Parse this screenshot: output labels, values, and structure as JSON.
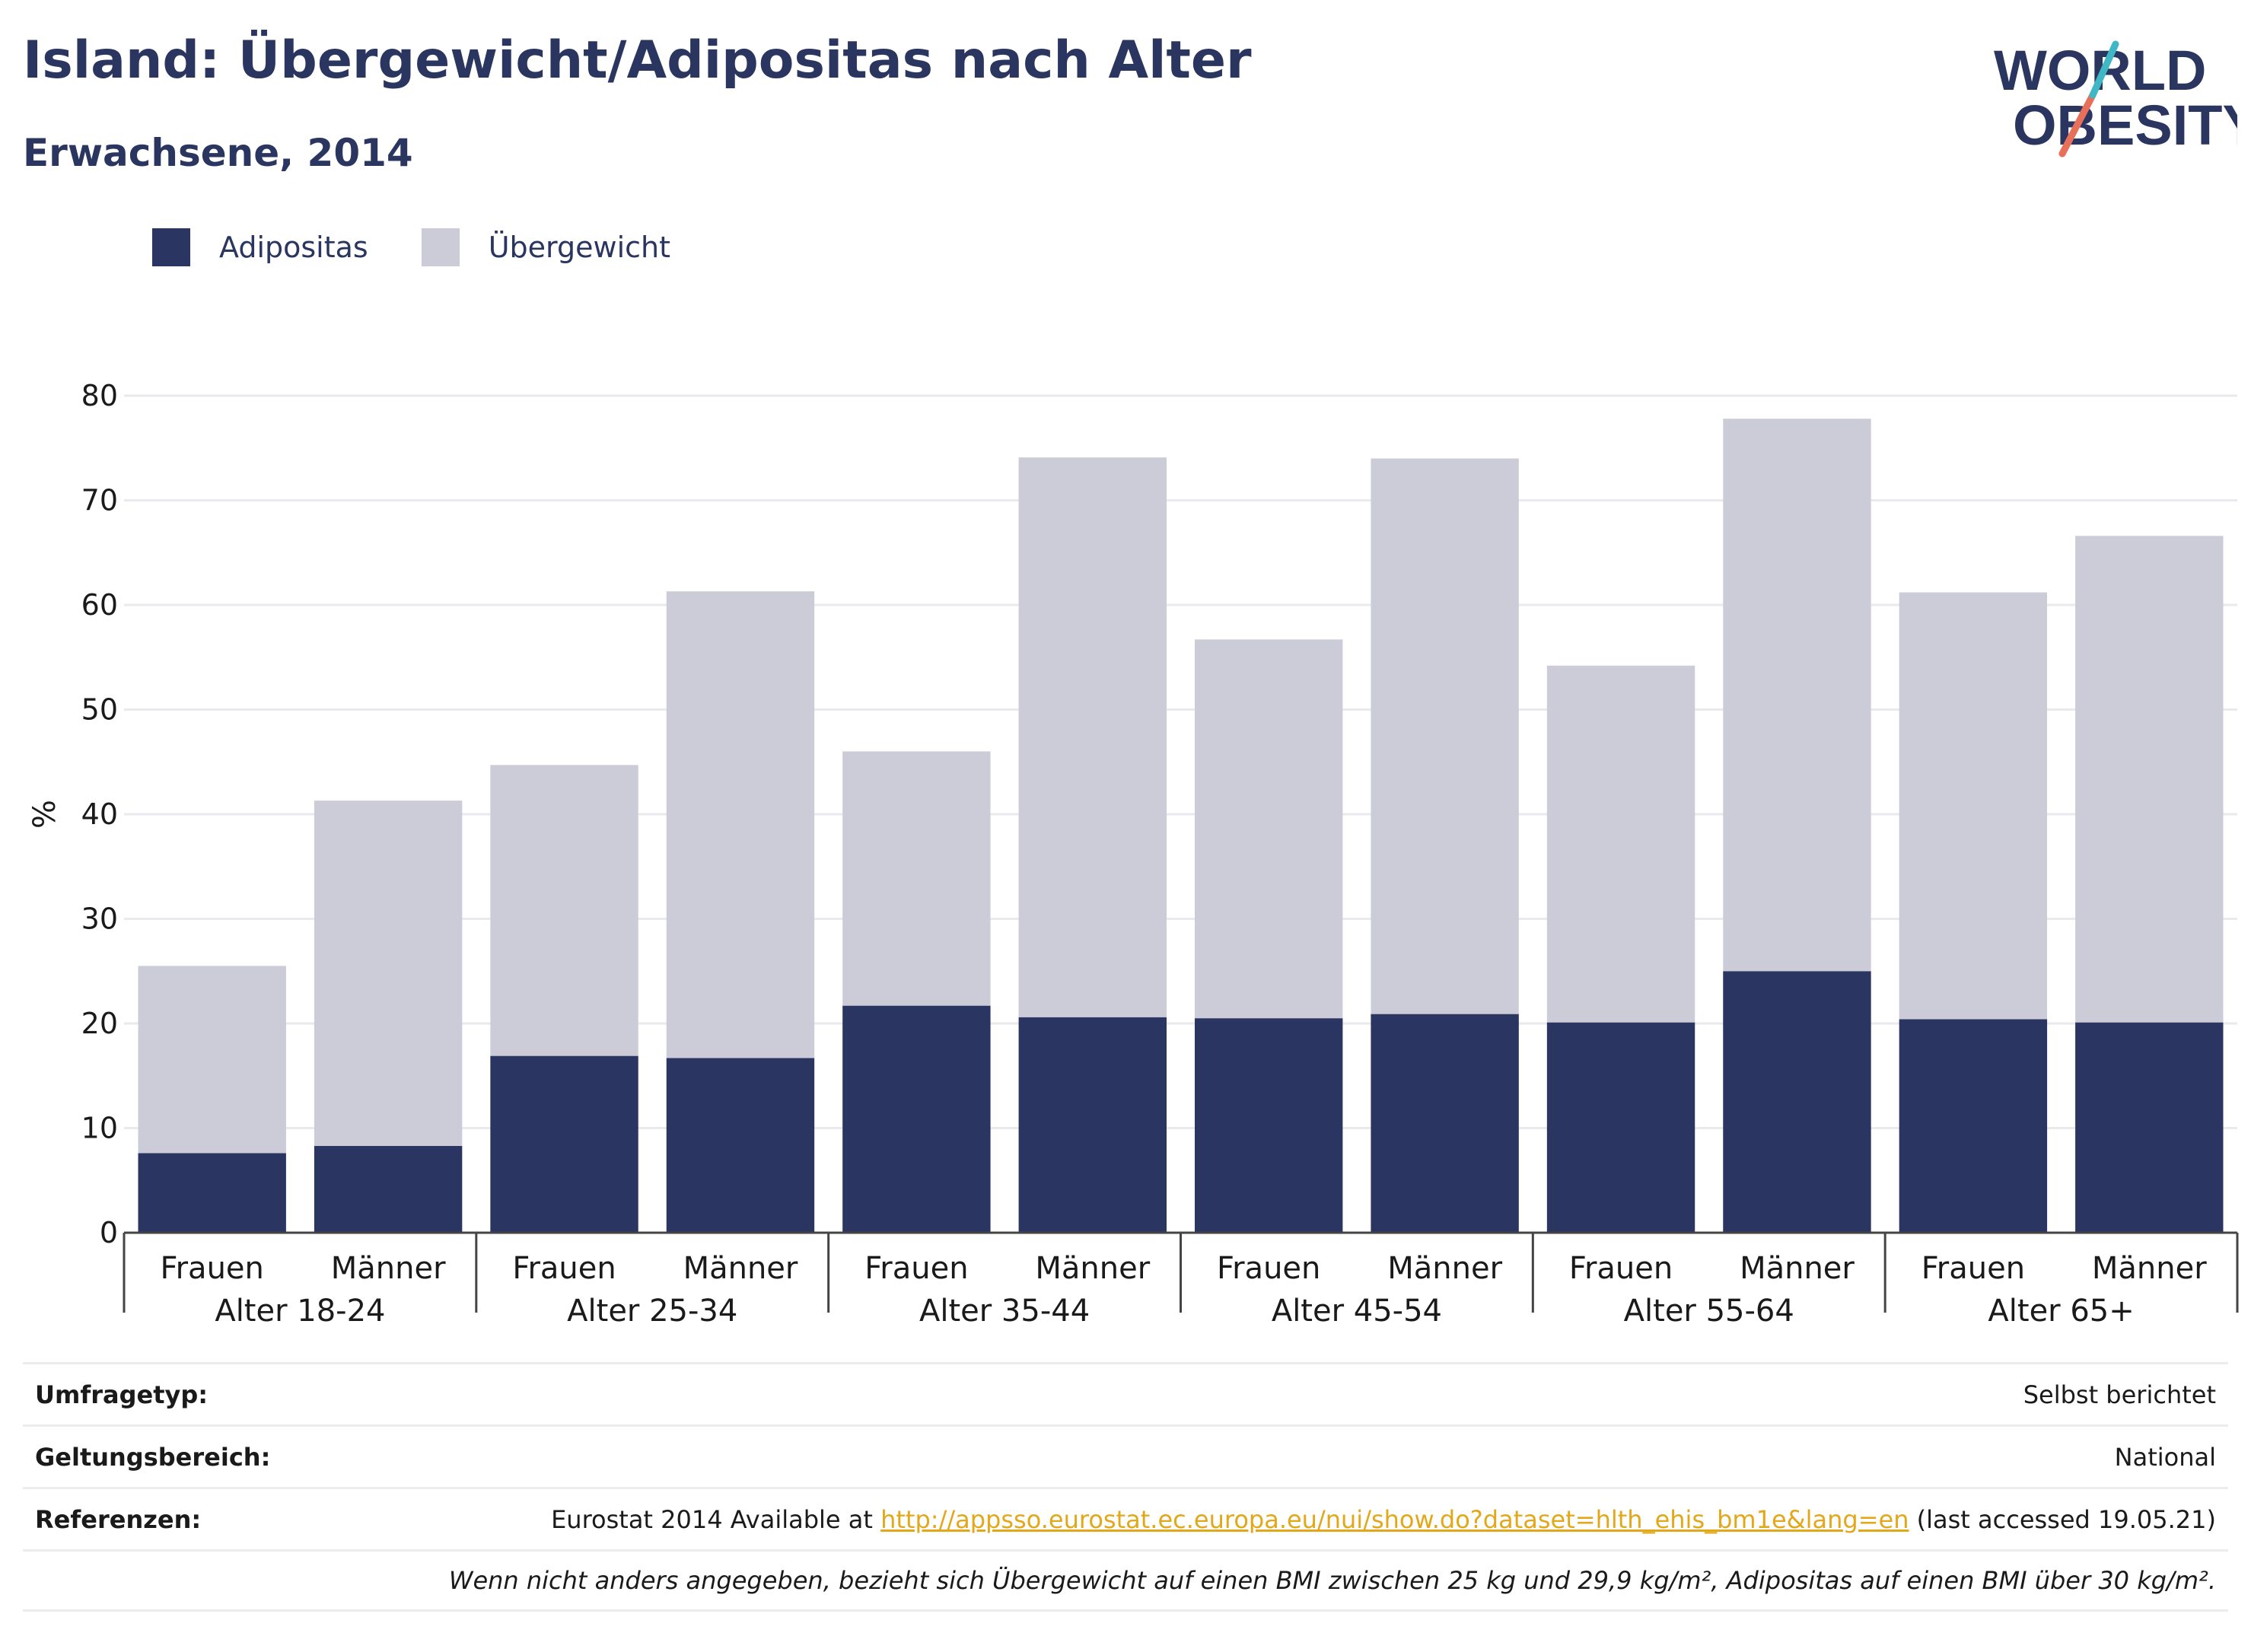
{
  "title": "Island: Übergewicht/Adipositas nach Alter",
  "subtitle": "Erwachsene, 2014",
  "logo": {
    "line1": "WORLD",
    "line2": "OBESITY"
  },
  "legend": [
    {
      "label": "Adipositas",
      "color": "#2a3562"
    },
    {
      "label": "Übergewicht",
      "color": "#cbccd8"
    }
  ],
  "chart_data": {
    "type": "bar",
    "stacked": true,
    "ylabel": "%",
    "ylim": [
      0,
      80
    ],
    "yticks": [
      0,
      10,
      20,
      30,
      40,
      50,
      60,
      70,
      80
    ],
    "grid": true,
    "legend_position": "top-left",
    "groups": [
      "Alter 18-24",
      "Alter 25-34",
      "Alter 35-44",
      "Alter 45-54",
      "Alter 55-64",
      "Alter 65+"
    ],
    "subcategories": [
      "Frauen",
      "Männer"
    ],
    "series": [
      {
        "name": "Adipositas",
        "color": "#2a3562",
        "values": [
          7.6,
          8.3,
          16.9,
          16.7,
          21.7,
          20.6,
          20.5,
          20.9,
          20.1,
          25.0,
          20.4,
          20.1
        ]
      },
      {
        "name": "Übergewicht",
        "color": "#cbccd8",
        "values": [
          17.9,
          33.0,
          27.8,
          44.6,
          24.3,
          53.5,
          36.2,
          53.1,
          34.1,
          52.8,
          40.8,
          46.5
        ]
      }
    ],
    "totals": [
      25.5,
      41.3,
      44.7,
      61.3,
      46.0,
      74.1,
      56.7,
      74.0,
      54.2,
      77.8,
      61.2,
      66.6
    ]
  },
  "footer": {
    "survey_label": "Umfragetyp:",
    "survey_value": "Selbst berichtet",
    "scope_label": "Geltungsbereich:",
    "scope_value": "National",
    "ref_label": "Referenzen:",
    "ref_prefix": "Eurostat 2014 Available at ",
    "ref_link": "http://appsso.eurostat.ec.europa.eu/nui/show.do?dataset=hlth_ehis_bm1e&lang=en",
    "ref_suffix": " (last accessed 19.05.21)",
    "note": "Wenn nicht anders angegeben, bezieht sich Übergewicht auf einen BMI zwischen 25 kg und 29,9 kg/m², Adipositas auf einen BMI über 30 kg/m²."
  }
}
